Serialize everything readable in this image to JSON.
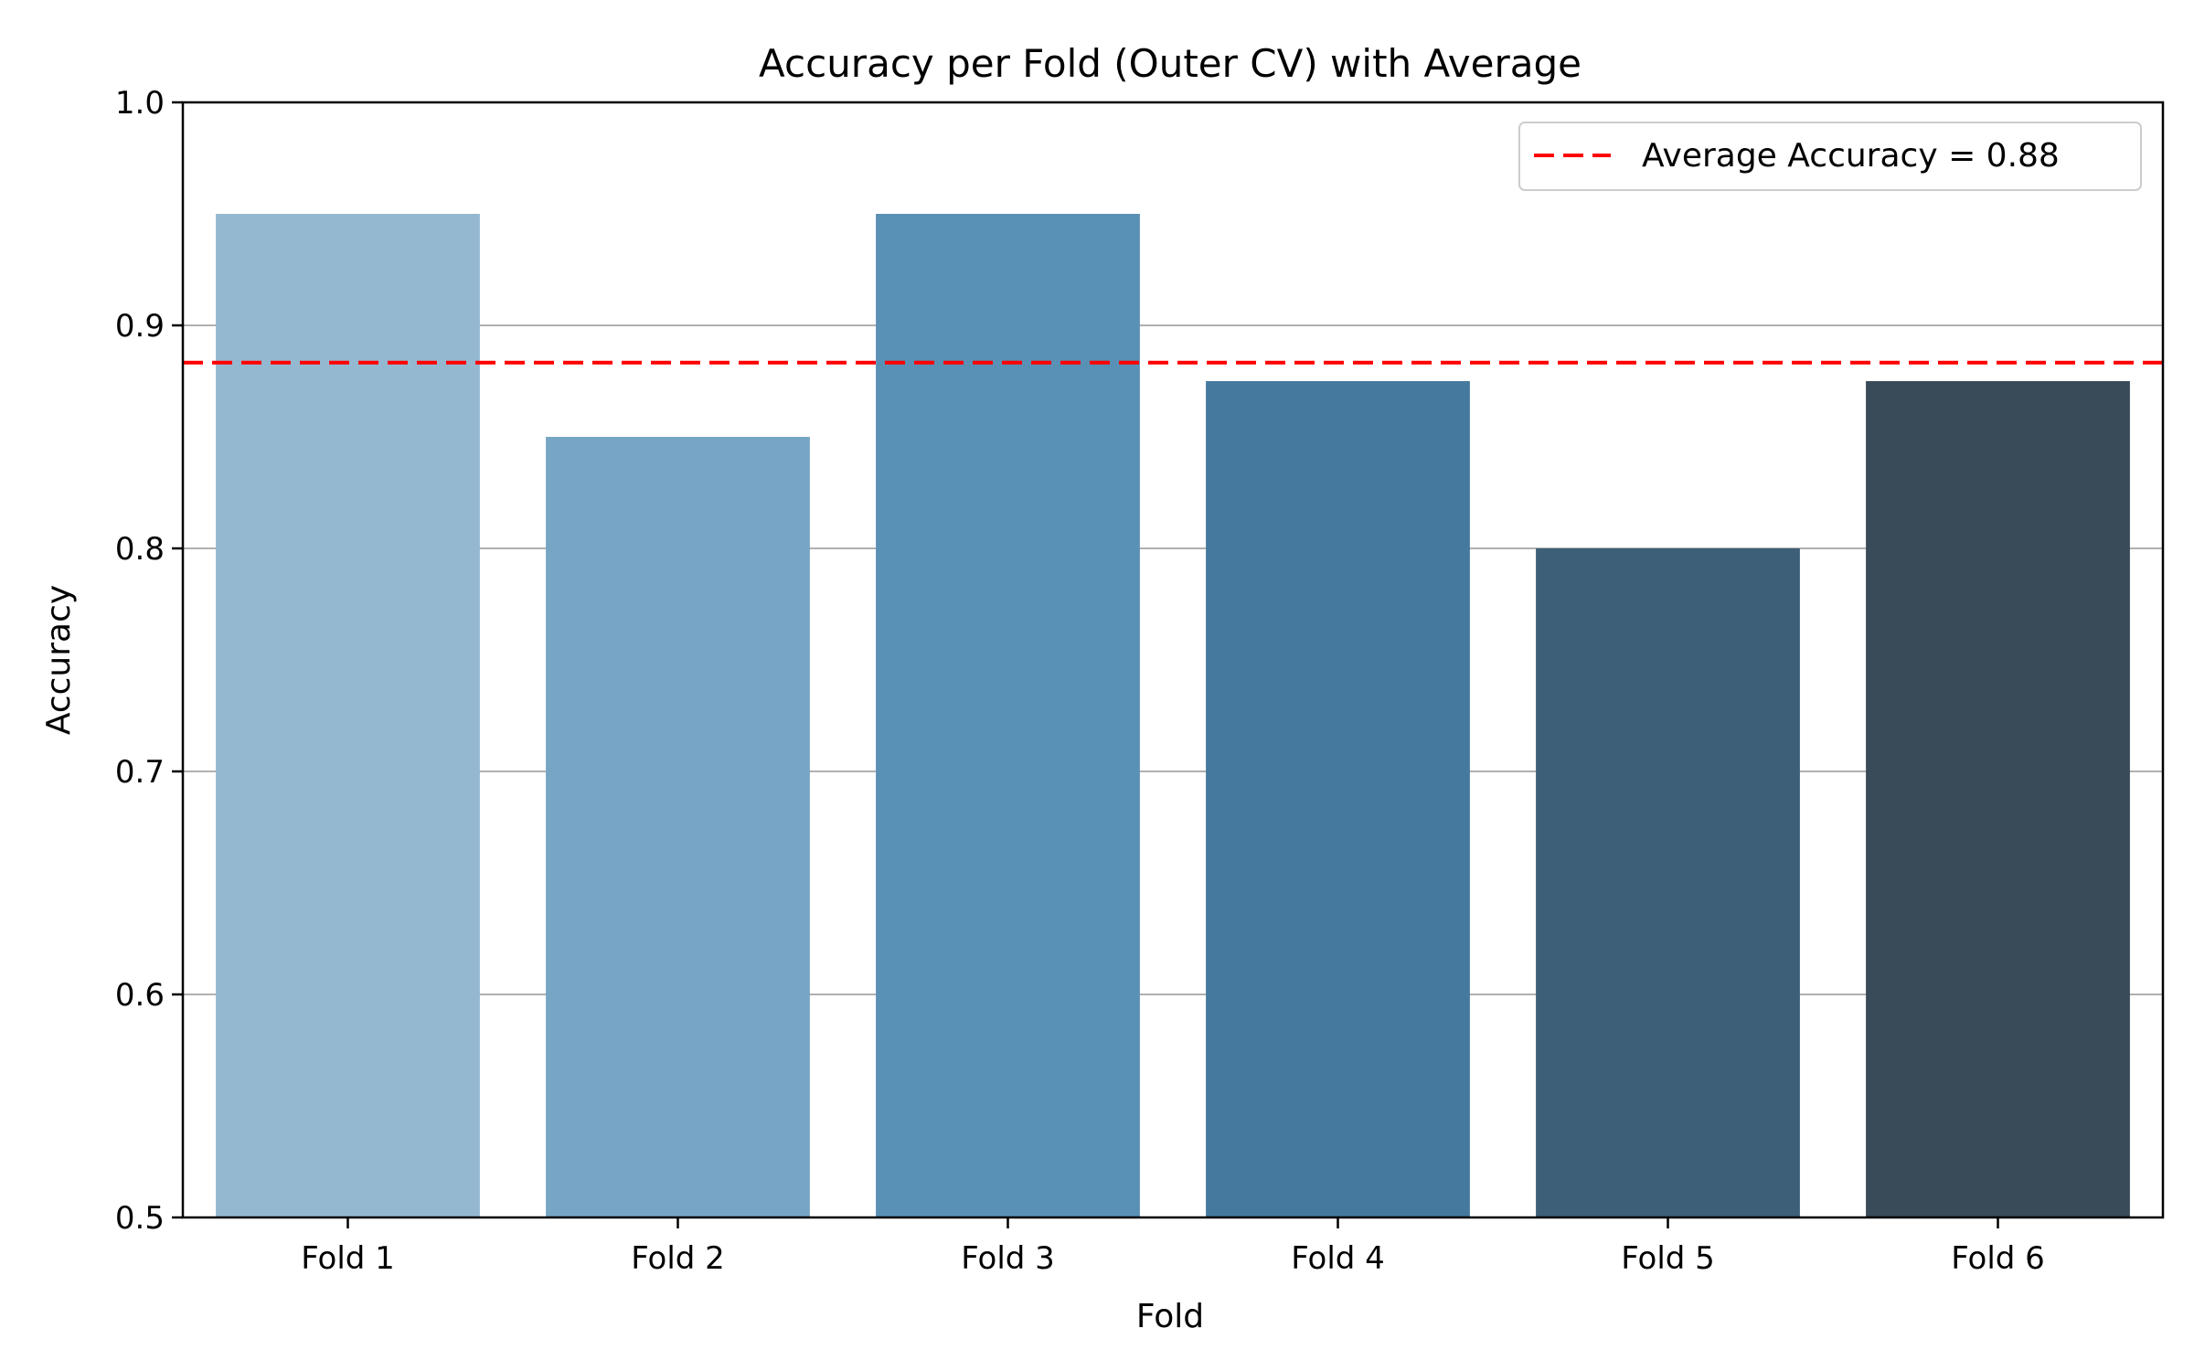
{
  "chart_data": {
    "type": "bar",
    "title": "Accuracy per Fold (Outer CV) with Average",
    "xlabel": "Fold",
    "ylabel": "Accuracy",
    "categories": [
      "Fold 1",
      "Fold 2",
      "Fold 3",
      "Fold 4",
      "Fold 5",
      "Fold 6"
    ],
    "values": [
      0.95,
      0.85,
      0.95,
      0.875,
      0.8,
      0.875
    ],
    "bar_colors": [
      "#95b8d1",
      "#76a5c5",
      "#5990b6",
      "#45799e",
      "#3e5f78",
      "#394a58"
    ],
    "ylim": [
      0.5,
      1.0
    ],
    "yticks": [
      0.5,
      0.6,
      0.7,
      0.8,
      0.9,
      1.0
    ],
    "ytick_labels": [
      "0.5",
      "0.6",
      "0.7",
      "0.8",
      "0.9",
      "1.0"
    ],
    "grid": "y-axis",
    "average_line": {
      "value": 0.8833,
      "label": "Average Accuracy = 0.88",
      "color": "#ff0000",
      "style": "dashed"
    },
    "legend_position": "top-right"
  }
}
